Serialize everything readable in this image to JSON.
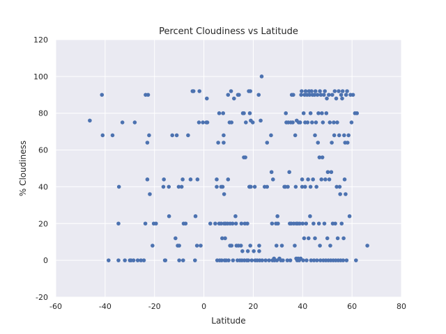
{
  "chart_data": {
    "type": "scatter",
    "title": "Percent Cloudiness vs Latitude",
    "xlabel": "Latitude",
    "ylabel": "% Cloudiness",
    "xlim": [
      -60,
      80
    ],
    "ylim": [
      -20,
      120
    ],
    "xticks": [
      -60,
      -40,
      -20,
      0,
      20,
      40,
      60,
      80
    ],
    "yticks": [
      -20,
      0,
      20,
      40,
      60,
      80,
      100,
      120
    ],
    "grid": true,
    "legend": "none",
    "colors": {
      "background": "#eaeaf2",
      "point": "#4c72b0",
      "grid": "#ffffff"
    },
    "series": [
      {
        "points": [
          [
            -46.2,
            76
          ],
          [
            -41.3,
            90
          ],
          [
            -41,
            68
          ],
          [
            -37,
            68
          ],
          [
            -38.6,
            0
          ],
          [
            -34.6,
            0
          ],
          [
            -34.4,
            40
          ],
          [
            -34.6,
            20
          ],
          [
            -33,
            75
          ],
          [
            -32,
            0
          ],
          [
            -30,
            0
          ],
          [
            -29.5,
            0
          ],
          [
            -28.5,
            0
          ],
          [
            -28,
            75
          ],
          [
            -26.8,
            0
          ],
          [
            -25.5,
            0
          ],
          [
            -24.3,
            0
          ],
          [
            -23.7,
            20
          ],
          [
            -23.6,
            90
          ],
          [
            -22.6,
            90
          ],
          [
            -22.9,
            64
          ],
          [
            -22.9,
            44
          ],
          [
            -22.2,
            68
          ],
          [
            -21.9,
            36
          ],
          [
            -20.8,
            8
          ],
          [
            -20.3,
            20
          ],
          [
            -19.4,
            20
          ],
          [
            -16.4,
            40
          ],
          [
            -16.2,
            44
          ],
          [
            -15.8,
            0
          ],
          [
            -15.6,
            0
          ],
          [
            -14.2,
            40
          ],
          [
            -14.1,
            24
          ],
          [
            -12.8,
            68
          ],
          [
            -11.5,
            12
          ],
          [
            -11,
            68
          ],
          [
            -10.6,
            8
          ],
          [
            -10.2,
            40
          ],
          [
            -10,
            8
          ],
          [
            -10,
            0
          ],
          [
            -9,
            40
          ],
          [
            -8.6,
            44
          ],
          [
            -8.4,
            0
          ],
          [
            -8.2,
            20
          ],
          [
            -7.4,
            20
          ],
          [
            -6.4,
            68
          ],
          [
            -5.4,
            44
          ],
          [
            -4.6,
            92
          ],
          [
            -4.2,
            92
          ],
          [
            -3.4,
            24
          ],
          [
            -3.6,
            0
          ],
          [
            -2.6,
            44
          ],
          [
            -2.8,
            8
          ],
          [
            -2,
            75
          ],
          [
            -1.8,
            92
          ],
          [
            -1.3,
            8
          ],
          [
            -0.4,
            75
          ],
          [
            1,
            75
          ],
          [
            1.2,
            88
          ],
          [
            1.4,
            75
          ],
          [
            2.6,
            20
          ],
          [
            4.6,
            20
          ],
          [
            5.2,
            44
          ],
          [
            5.2,
            40
          ],
          [
            5.4,
            0
          ],
          [
            5.8,
            64
          ],
          [
            6.2,
            80
          ],
          [
            6.2,
            20
          ],
          [
            6.4,
            0
          ],
          [
            7,
            40
          ],
          [
            7,
            20
          ],
          [
            7.2,
            0
          ],
          [
            7.4,
            12
          ],
          [
            7.6,
            40
          ],
          [
            7.8,
            80
          ],
          [
            8,
            68
          ],
          [
            8,
            64
          ],
          [
            8.2,
            36
          ],
          [
            8.2,
            20
          ],
          [
            8.4,
            0
          ],
          [
            8.6,
            12
          ],
          [
            8.8,
            20
          ],
          [
            9,
            0
          ],
          [
            9.6,
            20
          ],
          [
            9.8,
            90
          ],
          [
            9.8,
            44
          ],
          [
            10,
            0
          ],
          [
            10.4,
            75
          ],
          [
            10.6,
            20
          ],
          [
            10.6,
            8
          ],
          [
            11,
            92
          ],
          [
            11.2,
            75
          ],
          [
            11.2,
            8
          ],
          [
            11.6,
            20
          ],
          [
            11.8,
            0
          ],
          [
            12.2,
            88
          ],
          [
            12.8,
            24
          ],
          [
            13,
            20
          ],
          [
            13.2,
            8
          ],
          [
            13.6,
            0
          ],
          [
            13.8,
            90
          ],
          [
            14,
            8
          ],
          [
            14.2,
            90
          ],
          [
            14.6,
            0
          ],
          [
            15,
            8
          ],
          [
            15.2,
            20
          ],
          [
            15.4,
            0
          ],
          [
            15.6,
            5
          ],
          [
            15.8,
            80
          ],
          [
            16.2,
            80
          ],
          [
            16.2,
            56
          ],
          [
            16.4,
            0
          ],
          [
            16.6,
            20
          ],
          [
            16.8,
            56
          ],
          [
            17,
            75
          ],
          [
            17.4,
            0
          ],
          [
            17.6,
            20
          ],
          [
            17.8,
            5
          ],
          [
            18,
            0
          ],
          [
            18.2,
            92
          ],
          [
            18.4,
            40
          ],
          [
            18.6,
            80
          ],
          [
            18.6,
            40
          ],
          [
            18.8,
            92
          ],
          [
            18.8,
            8
          ],
          [
            19,
            76
          ],
          [
            19,
            40
          ],
          [
            19.4,
            0
          ],
          [
            19.8,
            75
          ],
          [
            20.2,
            5
          ],
          [
            20.6,
            40
          ],
          [
            20.8,
            0
          ],
          [
            21.6,
            0
          ],
          [
            22.2,
            90
          ],
          [
            22.4,
            8
          ],
          [
            22.4,
            5
          ],
          [
            22.6,
            0
          ],
          [
            23,
            76
          ],
          [
            23.4,
            100
          ],
          [
            23.6,
            0
          ],
          [
            24.6,
            40
          ],
          [
            25,
            0
          ],
          [
            25.6,
            64
          ],
          [
            25.6,
            40
          ],
          [
            26.4,
            0
          ],
          [
            27.2,
            68
          ],
          [
            27.4,
            48
          ],
          [
            27.6,
            20
          ],
          [
            27.8,
            0
          ],
          [
            28,
            44
          ],
          [
            28.4,
            1
          ],
          [
            28.6,
            0
          ],
          [
            29.2,
            20
          ],
          [
            29.4,
            8
          ],
          [
            29.6,
            0
          ],
          [
            29.8,
            24
          ],
          [
            30,
            20
          ],
          [
            30.6,
            1
          ],
          [
            31.2,
            0
          ],
          [
            31.6,
            8
          ],
          [
            32,
            0
          ],
          [
            32.6,
            40
          ],
          [
            33,
            40
          ],
          [
            33.2,
            80
          ],
          [
            33.4,
            75
          ],
          [
            33.8,
            0
          ],
          [
            34,
            40
          ],
          [
            34.2,
            75
          ],
          [
            34.6,
            48
          ],
          [
            34.8,
            20
          ],
          [
            35,
            0
          ],
          [
            35.2,
            75
          ],
          [
            35.4,
            20
          ],
          [
            35.6,
            90
          ],
          [
            36,
            75
          ],
          [
            36.2,
            90
          ],
          [
            36.4,
            20
          ],
          [
            36.8,
            8
          ],
          [
            37,
            68
          ],
          [
            37.2,
            40
          ],
          [
            37.4,
            20
          ],
          [
            37.4,
            1
          ],
          [
            37.6,
            76
          ],
          [
            37.8,
            0
          ],
          [
            38,
            20
          ],
          [
            38.2,
            1
          ],
          [
            38.4,
            75
          ],
          [
            38.6,
            0
          ],
          [
            38.8,
            20
          ],
          [
            39,
            75
          ],
          [
            39.2,
            1
          ],
          [
            39.4,
            90
          ],
          [
            39.6,
            92
          ],
          [
            39.8,
            40
          ],
          [
            39.8,
            44
          ],
          [
            40,
            20
          ],
          [
            40.2,
            0
          ],
          [
            40.4,
            80
          ],
          [
            40.6,
            12
          ],
          [
            40.8,
            90
          ],
          [
            41,
            75
          ],
          [
            41,
            40
          ],
          [
            41.2,
            92
          ],
          [
            41.4,
            20
          ],
          [
            41.6,
            0
          ],
          [
            41.8,
            90
          ],
          [
            42,
            75
          ],
          [
            42.2,
            44
          ],
          [
            42.4,
            12
          ],
          [
            42.6,
            92
          ],
          [
            42.8,
            90
          ],
          [
            43,
            24
          ],
          [
            43.2,
            80
          ],
          [
            43.2,
            40
          ],
          [
            43.4,
            0
          ],
          [
            43.6,
            92
          ],
          [
            43.8,
            75
          ],
          [
            44,
            90
          ],
          [
            44.2,
            44
          ],
          [
            44.4,
            20
          ],
          [
            44.6,
            0
          ],
          [
            44.8,
            90
          ],
          [
            45,
            68
          ],
          [
            45,
            12
          ],
          [
            45.2,
            92
          ],
          [
            45.4,
            75
          ],
          [
            45.6,
            40
          ],
          [
            45.8,
            0
          ],
          [
            46,
            90
          ],
          [
            46.2,
            64
          ],
          [
            46.4,
            80
          ],
          [
            46.6,
            20
          ],
          [
            46.8,
            56
          ],
          [
            47,
            92
          ],
          [
            47,
            8
          ],
          [
            47.2,
            0
          ],
          [
            47.4,
            90
          ],
          [
            47.6,
            44
          ],
          [
            47.8,
            80
          ],
          [
            48,
            56
          ],
          [
            48.2,
            75
          ],
          [
            48.4,
            0
          ],
          [
            48.6,
            90
          ],
          [
            48.8,
            20
          ],
          [
            49,
            92
          ],
          [
            49.2,
            44
          ],
          [
            49.4,
            0
          ],
          [
            49.6,
            80
          ],
          [
            49.8,
            88
          ],
          [
            50,
            12
          ],
          [
            50.2,
            48
          ],
          [
            50.4,
            0
          ],
          [
            50.6,
            90
          ],
          [
            50.8,
            44
          ],
          [
            51,
            75
          ],
          [
            51.2,
            8
          ],
          [
            51.4,
            0
          ],
          [
            51.6,
            48
          ],
          [
            51.8,
            64
          ],
          [
            52,
            90
          ],
          [
            52.2,
            20
          ],
          [
            52.4,
            0
          ],
          [
            52.6,
            75
          ],
          [
            52.8,
            68
          ],
          [
            53,
            92
          ],
          [
            53.2,
            20
          ],
          [
            53.4,
            0
          ],
          [
            53.6,
            88
          ],
          [
            53.8,
            40
          ],
          [
            54,
            75
          ],
          [
            54.2,
            12
          ],
          [
            54.4,
            0
          ],
          [
            54.6,
            92
          ],
          [
            54.8,
            68
          ],
          [
            55,
            40
          ],
          [
            55.2,
            36
          ],
          [
            55.4,
            0
          ],
          [
            55.6,
            90
          ],
          [
            55.8,
            20
          ],
          [
            56,
            88
          ],
          [
            56.2,
            92
          ],
          [
            56.4,
            0
          ],
          [
            56.6,
            12
          ],
          [
            56.8,
            68
          ],
          [
            57,
            44
          ],
          [
            57.2,
            64
          ],
          [
            57.4,
            36
          ],
          [
            57.6,
            90
          ],
          [
            57.8,
            0
          ],
          [
            58,
            92
          ],
          [
            58.2,
            64
          ],
          [
            58.6,
            68
          ],
          [
            59,
            24
          ],
          [
            59.4,
            90
          ],
          [
            59.8,
            75
          ],
          [
            60.4,
            90
          ],
          [
            61.2,
            80
          ],
          [
            61.6,
            0
          ],
          [
            62,
            80
          ],
          [
            66.2,
            8
          ]
        ]
      }
    ]
  }
}
